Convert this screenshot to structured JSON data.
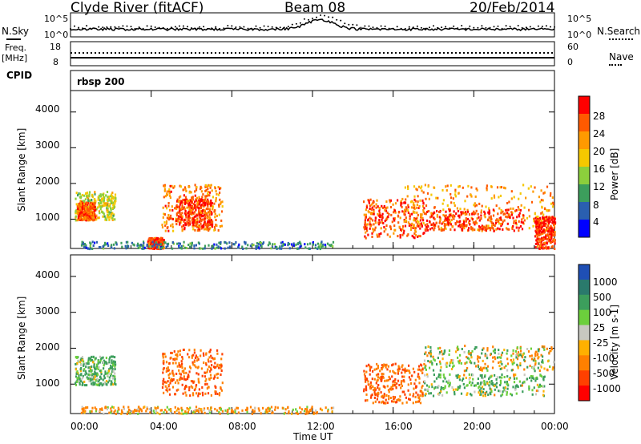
{
  "header": {
    "station": "Clyde River (fitACF)",
    "beam": "Beam 08",
    "date": "20/Feb/2014"
  },
  "strip_panels": {
    "nsky_label": "N.Sky",
    "nsearch_label": "N.Search",
    "freq_label": "Freq.",
    "freq_unit": "[MHz]",
    "cpid_label": "CPID",
    "nave_label": "Nave",
    "cpid_value": "rbsp 200",
    "left_ticks_top": [
      "10^5",
      "10^0"
    ],
    "right_ticks_top": [
      "10^5",
      "10^0"
    ],
    "left_ticks_freq": [
      "18",
      "8"
    ],
    "right_ticks_freq": [
      "60",
      "0"
    ]
  },
  "axes": {
    "x_ticks": [
      "00:00",
      "04:00",
      "08:00",
      "12:00",
      "16:00",
      "20:00",
      "00:00"
    ],
    "x_label": "Time UT",
    "y_label": "Slant Range [km]",
    "y_ticks": [
      "1000",
      "2000",
      "3000",
      "4000"
    ]
  },
  "power_scale": {
    "label": "Power [dB]",
    "ticks": [
      "28",
      "24",
      "20",
      "16",
      "12",
      "8",
      "4"
    ],
    "colors": [
      "#ff0000",
      "#ff5a00",
      "#ff9a00",
      "#f5c800",
      "#8ccf3c",
      "#3c9e5c",
      "#2a5fb0",
      "#0000ff"
    ]
  },
  "velocity_scale": {
    "label": "Velocity [m s-1]",
    "ticks": [
      "1000",
      "500",
      "100",
      "25",
      "-25",
      "-100",
      "-500",
      "-1000"
    ],
    "colors": [
      "#1f4fb5",
      "#2a7a6c",
      "#3c9e5c",
      "#6ccf3c",
      "#c8c8c0",
      "#ffb000",
      "#ff8000",
      "#ff4000",
      "#ff0000"
    ]
  },
  "chart_data": [
    {
      "type": "heatmap",
      "title": "Power [dB]",
      "xlabel": "Time UT",
      "ylabel": "Slant Range [km]",
      "xlim": [
        0,
        24
      ],
      "ylim": [
        180,
        4600
      ],
      "grid": false,
      "regions": [
        {
          "t": [
            0.2,
            2.2
          ],
          "range": [
            1000,
            1800
          ],
          "power": 16
        },
        {
          "t": [
            0.3,
            1.2
          ],
          "range": [
            1000,
            1500
          ],
          "power": 26
        },
        {
          "t": [
            4.5,
            7.5
          ],
          "range": [
            700,
            2000
          ],
          "power": 24
        },
        {
          "t": [
            5.2,
            7.0
          ],
          "range": [
            800,
            1600
          ],
          "power": 28
        },
        {
          "t": [
            3.8,
            4.6
          ],
          "range": [
            200,
            500
          ],
          "power": 28
        },
        {
          "t": [
            0.5,
            13.0
          ],
          "range": [
            200,
            400
          ],
          "power": 8
        },
        {
          "t": [
            14.5,
            17.5
          ],
          "range": [
            500,
            1600
          ],
          "power": 26
        },
        {
          "t": [
            16.5,
            24.0
          ],
          "range": [
            700,
            2000
          ],
          "power": 22
        },
        {
          "t": [
            17.5,
            22.5
          ],
          "range": [
            700,
            1300
          ],
          "power": 28
        },
        {
          "t": [
            23.0,
            24.0
          ],
          "range": [
            200,
            1100
          ],
          "power": 28
        }
      ]
    },
    {
      "type": "heatmap",
      "title": "Velocity [m s-1]",
      "xlabel": "Time UT",
      "ylabel": "Slant Range [km]",
      "xlim": [
        0,
        24
      ],
      "ylim": [
        180,
        4600
      ],
      "grid": false,
      "regions": [
        {
          "t": [
            0.2,
            2.2
          ],
          "range": [
            1000,
            1800
          ],
          "velocity": 100
        },
        {
          "t": [
            4.5,
            7.5
          ],
          "range": [
            700,
            2000
          ],
          "velocity": -300
        },
        {
          "t": [
            0.5,
            13.0
          ],
          "range": [
            200,
            400
          ],
          "velocity": -100
        },
        {
          "t": [
            14.5,
            17.5
          ],
          "range": [
            500,
            1600
          ],
          "velocity": -300
        },
        {
          "t": [
            17.5,
            24.0
          ],
          "range": [
            1400,
            2100
          ],
          "velocity": 0
        },
        {
          "t": [
            17.5,
            23.5
          ],
          "range": [
            700,
            1300
          ],
          "velocity": 80
        }
      ]
    }
  ]
}
